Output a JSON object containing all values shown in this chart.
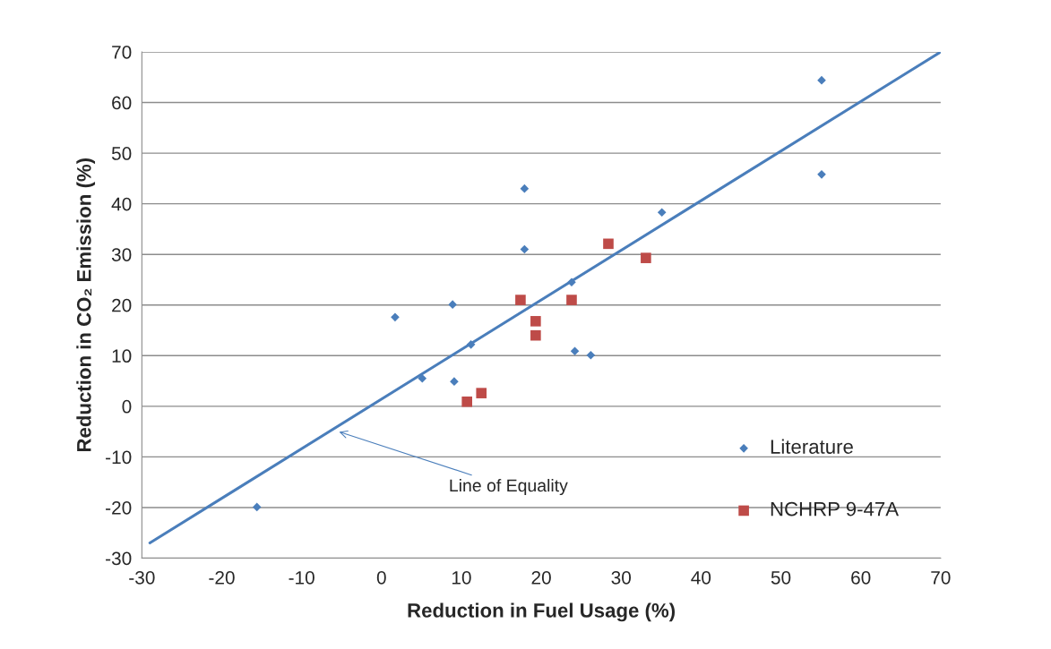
{
  "chart_data": {
    "type": "scatter",
    "xlabel": "Reduction in Fuel Usage (%)",
    "ylabel": "Reduction in CO₂ Emission (%)",
    "xlim": [
      -30,
      70
    ],
    "ylim": [
      -30,
      70
    ],
    "xticks": [
      -30,
      -20,
      -10,
      0,
      10,
      20,
      30,
      40,
      50,
      60,
      70
    ],
    "yticks": [
      -30,
      -20,
      -10,
      0,
      10,
      20,
      30,
      40,
      50,
      60,
      70
    ],
    "grid": "y",
    "legend": "bottom right",
    "series": [
      {
        "name": "Literature",
        "color": "#4a7ebb",
        "marker": "diamond",
        "x": [
          1.7,
          5.1,
          8.9,
          9.1,
          11.2,
          17.9,
          17.9,
          23.8,
          24.2,
          26.2,
          35.1,
          55.1,
          55.1,
          -15.6
        ],
        "values": [
          17.6,
          5.5,
          20.1,
          4.9,
          12.2,
          43,
          31,
          24.5,
          10.9,
          10.1,
          38.3,
          64.4,
          45.8,
          -19.9
        ]
      },
      {
        "name": "NCHRP 9-47A",
        "color": "#be4b48",
        "marker": "square",
        "x": [
          10.7,
          12.5,
          17.4,
          19.3,
          19.3,
          23.8,
          28.4,
          33.1
        ],
        "values": [
          0.9,
          2.6,
          21,
          16.8,
          14,
          21,
          32.1,
          29.3
        ]
      },
      {
        "type": "line",
        "color": "#4a7ebb",
        "x": [
          -29,
          70
        ],
        "values": [
          -27,
          70
        ]
      }
    ],
    "annotations": [
      {
        "text": "Line of Equality",
        "x": -5.6,
        "y": -4.9
      }
    ]
  }
}
